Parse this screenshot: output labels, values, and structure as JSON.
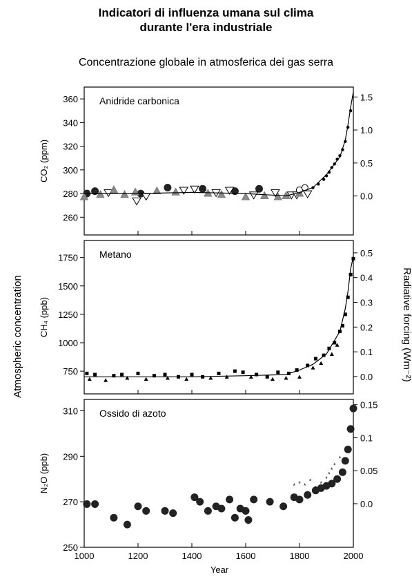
{
  "title_line1": "Indicatori di influenza umana sul clima",
  "title_line2": "durante l'era industriale",
  "subtitle": "Concentrazione globale in atmosferica dei gas serra",
  "left_axis_label": "Atmospheric concentration",
  "right_axis_label": "Radiative forcing  (Wm⁻²)",
  "x_axis_label": "Year",
  "chart_data": [
    {
      "type": "scatter",
      "panel_label": "Anidride carbonica",
      "ylabel": "CO₂ (ppm)",
      "xlim": [
        1000,
        2000
      ],
      "ylim": [
        245,
        370
      ],
      "yticks": [
        260,
        280,
        300,
        320,
        340,
        360
      ],
      "right_ylim": [
        -0.59,
        1.65
      ],
      "right_yticks": [
        0.0,
        0.5,
        1.0,
        1.5
      ],
      "xticks": [
        1000,
        1200,
        1400,
        1600,
        1800,
        2000
      ],
      "series": [
        {
          "marker": "filled-circle",
          "x": [
            1010,
            1040,
            1210,
            1310,
            1440,
            1560,
            1650
          ],
          "y": [
            280,
            282,
            280,
            285,
            284,
            282,
            284
          ]
        },
        {
          "marker": "open-triangle-down",
          "x": [
            1090,
            1195,
            1230,
            1370,
            1410,
            1490,
            1540,
            1630,
            1710,
            1770,
            1790,
            1830
          ],
          "y": [
            281,
            274,
            278,
            283,
            284,
            281,
            283,
            279,
            281,
            279,
            279,
            280
          ]
        },
        {
          "marker": "grey-triangle-up",
          "x": [
            1000,
            1060,
            1110,
            1150,
            1190,
            1270,
            1340,
            1460,
            1510,
            1600,
            1670,
            1720,
            1750,
            1800
          ],
          "y": [
            277,
            279,
            283,
            279,
            281,
            282,
            281,
            280,
            279,
            277,
            278,
            277,
            278,
            280
          ]
        },
        {
          "marker": "open-circle",
          "x": [
            1800,
            1820
          ],
          "y": [
            283,
            285
          ]
        },
        {
          "marker": "small-dot",
          "x": [
            1850,
            1870,
            1890,
            1900,
            1910,
            1920,
            1930,
            1940,
            1950,
            1960,
            1970,
            1980,
            1990
          ],
          "y": [
            285,
            288,
            292,
            295,
            298,
            302,
            305,
            309,
            312,
            317,
            324,
            336,
            350
          ]
        },
        {
          "marker": "line",
          "x": [
            1000,
            1200,
            1400,
            1600,
            1750,
            1800,
            1850,
            1900,
            1950,
            1970,
            1980,
            1990,
            2000
          ],
          "y": [
            280,
            280,
            281,
            280,
            278,
            281,
            285,
            296,
            311,
            325,
            338,
            353,
            366
          ]
        }
      ]
    },
    {
      "type": "scatter",
      "panel_label": "Metano",
      "ylabel": "CH₄ (ppb)",
      "xlim": [
        1000,
        2000
      ],
      "ylim": [
        550,
        1900
      ],
      "yticks": [
        750,
        1000,
        1250,
        1500,
        1750
      ],
      "right_ylim": [
        -0.07,
        0.55
      ],
      "right_yticks": [
        0.0,
        0.1,
        0.2,
        0.3,
        0.4,
        0.5
      ],
      "xticks": [
        1000,
        1200,
        1400,
        1600,
        1800,
        2000
      ],
      "series": [
        {
          "marker": "filled-square",
          "x": [
            1010,
            1040,
            1110,
            1140,
            1200,
            1260,
            1300,
            1350,
            1400,
            1440,
            1500,
            1560,
            1590,
            1640,
            1680,
            1720,
            1760,
            1790,
            1830,
            1860,
            1890,
            1910,
            1930,
            1950,
            1960,
            1970,
            1980,
            1990,
            2000
          ],
          "y": [
            730,
            720,
            710,
            720,
            730,
            710,
            720,
            700,
            720,
            700,
            730,
            750,
            740,
            720,
            700,
            740,
            730,
            760,
            800,
            860,
            890,
            950,
            1000,
            1100,
            1150,
            1250,
            1400,
            1600,
            1740
          ]
        },
        {
          "marker": "filled-triangle-up",
          "x": [
            1020,
            1080,
            1160,
            1230,
            1310,
            1380,
            1470,
            1530,
            1620,
            1700,
            1750,
            1800,
            1850,
            1880,
            1920,
            1940
          ],
          "y": [
            680,
            670,
            690,
            680,
            690,
            680,
            690,
            700,
            700,
            680,
            690,
            700,
            780,
            820,
            900,
            980
          ]
        },
        {
          "marker": "line",
          "x": [
            1000,
            1200,
            1400,
            1600,
            1750,
            1800,
            1850,
            1900,
            1950,
            1970,
            1980,
            1990,
            2000
          ],
          "y": [
            700,
            700,
            700,
            710,
            720,
            760,
            810,
            900,
            1100,
            1300,
            1450,
            1650,
            1760
          ]
        }
      ]
    },
    {
      "type": "scatter",
      "panel_label": "Ossido di azoto",
      "ylabel": "N₂O (ppb)",
      "xlim": [
        1000,
        2000
      ],
      "ylim": [
        250,
        315
      ],
      "yticks": [
        250,
        270,
        290,
        310
      ],
      "right_ylim": [
        -0.066,
        0.158
      ],
      "right_yticks": [
        0.0,
        0.05,
        0.1,
        0.15
      ],
      "xticks": [
        1000,
        1200,
        1400,
        1600,
        1800,
        2000
      ],
      "series": [
        {
          "marker": "filled-circle",
          "x": [
            1010,
            1040,
            1110,
            1160,
            1200,
            1230,
            1300,
            1330,
            1410,
            1430,
            1460,
            1490,
            1510,
            1540,
            1560,
            1580,
            1600,
            1610,
            1630,
            1690,
            1740,
            1780,
            1800,
            1830,
            1860,
            1880,
            1900,
            1920,
            1940,
            1960,
            1970,
            1980,
            1990,
            2000
          ],
          "y": [
            269,
            269,
            263,
            260,
            268,
            266,
            266,
            265,
            272,
            270,
            266,
            268,
            267,
            271,
            263,
            267,
            266,
            262,
            271,
            270,
            268,
            272,
            271,
            273,
            275,
            276,
            277,
            278,
            280,
            283,
            288,
            293,
            302,
            311
          ]
        },
        {
          "marker": "star",
          "x": [
            1780,
            1800,
            1820,
            1840,
            1860,
            1880,
            1900,
            1910,
            1920,
            1930,
            1950
          ],
          "y": [
            277,
            278,
            277,
            279,
            276,
            278,
            280,
            282,
            284,
            286,
            289
          ]
        }
      ]
    }
  ]
}
